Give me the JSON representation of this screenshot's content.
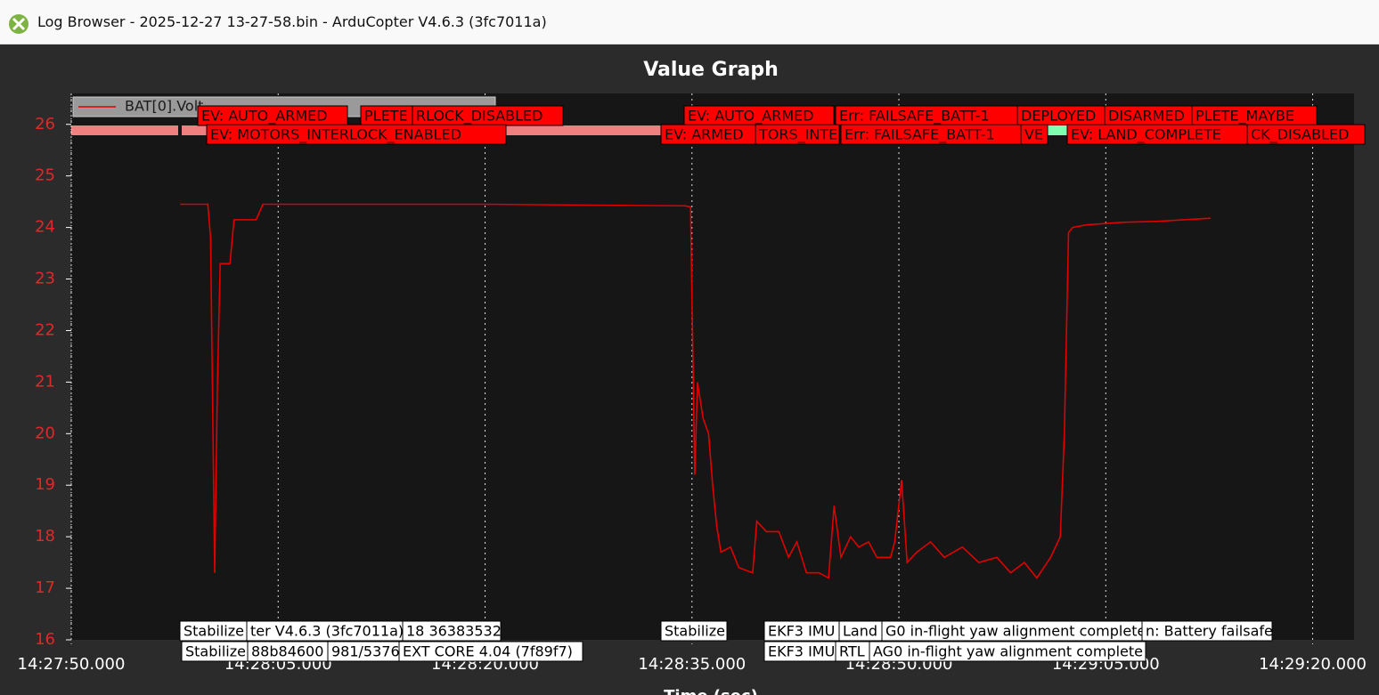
{
  "window": {
    "title": "Log Browser - 2025-12-27 13-27-58.bin - ArduCopter V4.6.3 (3fc7011a)"
  },
  "chart_data": {
    "type": "line",
    "title": "Value Graph",
    "x_label": "Time (sec)",
    "xlim": [
      52070,
      52163
    ],
    "ylim": [
      16,
      26.6
    ],
    "xticks": [
      {
        "value": 52070,
        "label": "14:27:50.000"
      },
      {
        "value": 52085,
        "label": "14:28:05.000"
      },
      {
        "value": 52100,
        "label": "14:28:20.000"
      },
      {
        "value": 52115,
        "label": "14:28:35.000"
      },
      {
        "value": 52130,
        "label": "14:28:50.000"
      },
      {
        "value": 52145,
        "label": "14:29:05.000"
      },
      {
        "value": 52160,
        "label": "14:29:20.000"
      }
    ],
    "yticks": [
      16,
      17,
      18,
      19,
      20,
      21,
      22,
      23,
      24,
      25,
      26
    ],
    "grid": true,
    "series": [
      {
        "name": "BAT[0].Volt",
        "color": "#e00000",
        "x": [
          52077.9,
          52079.9,
          52080.1,
          52080.4,
          52080.6,
          52080.8,
          52081.5,
          52081.8,
          52083.4,
          52083.9,
          52099.7,
          52114.5,
          52114.9,
          52115.2,
          52115.4,
          52115.8,
          52116.2,
          52116.5,
          52116.8,
          52117.1,
          52117.8,
          52118.4,
          52119.4,
          52119.7,
          52120.4,
          52121.3,
          52122.0,
          52122.6,
          52123.3,
          52124.2,
          52124.9,
          52125.3,
          52125.8,
          52126.5,
          52127.1,
          52127.8,
          52128.4,
          52129.4,
          52129.7,
          52130.2,
          52130.6,
          52131.3,
          52132.3,
          52133.3,
          52134.6,
          52135.8,
          52137.1,
          52138.1,
          52139.1,
          52140.0,
          52141.0,
          52141.7,
          52142.0,
          52142.3,
          52142.6,
          52143.6,
          52146.2,
          52148.8,
          52152.6
        ],
        "values": [
          24.45,
          24.45,
          23.8,
          17.3,
          21,
          23.3,
          23.3,
          24.15,
          24.15,
          24.45,
          24.45,
          24.42,
          24.4,
          19.2,
          21,
          20.3,
          20,
          19,
          18.2,
          17.7,
          17.8,
          17.4,
          17.3,
          18.3,
          18.1,
          18.1,
          17.6,
          17.9,
          17.3,
          17.3,
          17.2,
          18.6,
          17.6,
          18,
          17.8,
          17.9,
          17.6,
          17.6,
          17.9,
          19.1,
          17.5,
          17.7,
          17.9,
          17.6,
          17.8,
          17.5,
          17.6,
          17.3,
          17.5,
          17.2,
          17.6,
          18,
          20,
          23.9,
          24,
          24.05,
          24.1,
          24.12,
          24.18
        ]
      }
    ],
    "annotations": {
      "events_top": [
        "EV: AUTO_ARMED",
        "PLETE",
        "RLOCK_DISABLED",
        "EV: AUTO_ARMED",
        "Err: FAILSAFE_BATT-1",
        "DEPLOYED",
        "DISARMED",
        "PLETE_MAYBE"
      ],
      "events_bottom": [
        "EV: MOTORS_INTERLOCK_ENABLED",
        "EV: ARMED",
        "TORS_INTE",
        "Err: FAILSAFE_BATT-1",
        "VE",
        "EV: LAND_COMPLETE",
        "CK_DISABLED"
      ],
      "messages_top": [
        "Stabilize",
        "ter V4.6.3 (3fc7011a)",
        "18 36383532",
        "Stabilize",
        "EKF3 IMU",
        "Land",
        "G0 in-flight yaw alignment complete",
        "n: Battery failsafe"
      ],
      "messages_bottom": [
        "Stabilize",
        "88b84600",
        "981/5376",
        "EXT CORE 4.04 (7f89f7)",
        "EKF3 IMU",
        "RTL",
        "AG0 in-flight yaw alignment complete"
      ]
    }
  }
}
